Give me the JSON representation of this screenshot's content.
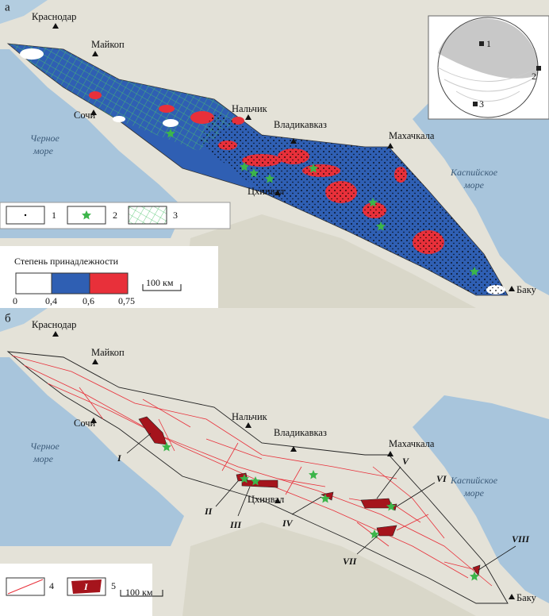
{
  "panel_a": {
    "label": "а",
    "cities": [
      "Краснодар",
      "Майкоп",
      "Сочи",
      "Нальчик",
      "Владикавказ",
      "Махачкала",
      "Цхинвал",
      "Баку"
    ],
    "black_sea": [
      "Черное",
      "море"
    ],
    "caspian_sea": [
      "Каспийское",
      "море"
    ],
    "legend": [
      "1",
      "2",
      "3"
    ],
    "scale_title": "Степень принадлежности",
    "scale_ticks": [
      "0",
      "0,4",
      "0,6",
      "0,75"
    ],
    "scale_bar": "100 км",
    "stereonet": [
      "1",
      "2",
      "3"
    ]
  },
  "panel_b": {
    "label": "б",
    "cities": [
      "Краснодар",
      "Майкоп",
      "Сочи",
      "Нальчик",
      "Владикавказ",
      "Махачкала",
      "Цхинвал",
      "Баку"
    ],
    "black_sea": [
      "Черное",
      "море"
    ],
    "caspian_sea": [
      "Каспийское",
      "море"
    ],
    "legend": [
      "4",
      "5"
    ],
    "legend_symbol": "I",
    "zones": [
      "I",
      "II",
      "III",
      "IV",
      "V",
      "VI",
      "VII",
      "VIII"
    ],
    "scale_bar": "100 км"
  }
}
